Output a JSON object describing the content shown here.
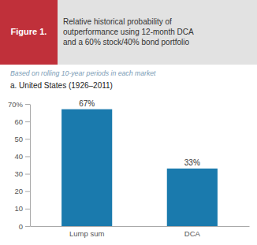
{
  "chart_data": {
    "type": "bar",
    "title": "Relative historical probability of\noutperformance using 12-month DCA\nand a 60% stock/40% bond portfolio",
    "subtitle": "Based on rolling 10-year periods in each market",
    "annotations": [
      "Figure 1.",
      "a. United States (1926–2011)"
    ],
    "categories": [
      "Lump sum",
      "DCA"
    ],
    "values": [
      67,
      33
    ],
    "value_labels": [
      "67%",
      "33%"
    ],
    "data_labels": true,
    "color": "#1a7aad",
    "ylim": [
      0,
      70
    ],
    "yticks": [
      0,
      10,
      20,
      30,
      40,
      50,
      60,
      {
        "value": 70,
        "label": "70%"
      }
    ],
    "grid": false
  }
}
